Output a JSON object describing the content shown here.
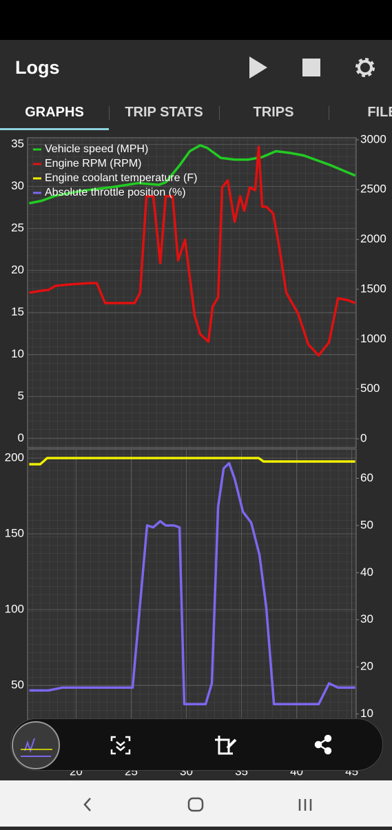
{
  "app": {
    "title": "Logs",
    "tabs": [
      "GRAPHS",
      "TRIP STATS",
      "TRIPS",
      "FILE"
    ]
  },
  "chart_data": [
    {
      "type": "line",
      "xlim": [
        15.6,
        45.4
      ],
      "ylim": [
        -1.1,
        35.8
      ],
      "yticks": [
        0,
        5,
        10,
        15,
        20,
        25,
        30,
        35
      ],
      "y2lim": [
        -90,
        3020
      ],
      "y2ticks": [
        0,
        500,
        1000,
        1500,
        2000,
        2500,
        3000
      ],
      "grid": true,
      "legend": "upper left",
      "series": [
        {
          "name": "Vehicle speed (MPH)",
          "color": "#22cc22",
          "x": [
            15.75,
            16.88,
            18.13,
            20.63,
            23.13,
            25.63,
            27.5,
            28.13,
            29.38,
            30.31,
            31.25,
            31.88,
            33.13,
            34.38,
            35.63,
            36.88,
            38.13,
            39.38,
            40.63,
            43.13,
            45.31
          ],
          "values": [
            28,
            28.3,
            28.9,
            29.5,
            29.9,
            30.4,
            30.2,
            30.5,
            32.5,
            34.2,
            34.9,
            34.6,
            33.4,
            33.2,
            33.2,
            33.5,
            34.2,
            34,
            33.7,
            32.5,
            31.3
          ]
        },
        {
          "name": "Engine RPM (RPM)",
          "color": "#e01010",
          "axis": "y2",
          "x": [
            15.75,
            16.88,
            17.5,
            18.13,
            19.38,
            21.25,
            21.88,
            22.63,
            23.75,
            25.31,
            25.81,
            26.38,
            27,
            27.63,
            28.13,
            28.75,
            29.25,
            29.88,
            30.75,
            31.25,
            32,
            32.38,
            32.88,
            33.25,
            33.75,
            34.38,
            34.88,
            35.25,
            35.75,
            36.25,
            36.56,
            36.88,
            37.25,
            37.88,
            38.44,
            39.06,
            40.13,
            41.06,
            42,
            42.94,
            43.75,
            44.69,
            45.31
          ],
          "values": [
            1465,
            1486,
            1493,
            1534,
            1548,
            1562,
            1562,
            1361,
            1361,
            1361,
            1465,
            2433,
            2433,
            1762,
            2433,
            2433,
            1790,
            1997,
            1237,
            1050,
            974,
            1327,
            1417,
            2522,
            2592,
            2177,
            2433,
            2288,
            2522,
            2495,
            2930,
            2329,
            2329,
            2260,
            1914,
            1465,
            1258,
            947,
            836,
            968,
            1410,
            1389,
            1361
          ]
        }
      ]
    },
    {
      "type": "line",
      "xlim": [
        15.6,
        45.4
      ],
      "xticks": [
        20,
        25,
        30,
        35,
        40,
        45
      ],
      "ylim": [
        0,
        205.9
      ],
      "yticks": [
        50,
        100,
        150,
        200
      ],
      "y2lim": [
        0,
        66.2
      ],
      "y2ticks": [
        10,
        20,
        30,
        40,
        50,
        60
      ],
      "grid": true,
      "series": [
        {
          "name": "Engine coolant temperature (F)",
          "color": "#f0f000",
          "x": [
            15.75,
            16.75,
            17.38,
            36.56,
            37,
            45.31
          ],
          "values": [
            195.9,
            195.9,
            200,
            200,
            197.7,
            197.7
          ]
        },
        {
          "name": "Absolute throttle position (%)",
          "color": "#7b68ee",
          "axis": "y2",
          "x": [
            15.75,
            17.5,
            18.75,
            25.13,
            26.44,
            27,
            27.63,
            28.13,
            28.88,
            29.38,
            29.81,
            31.75,
            32.31,
            32.88,
            33.38,
            33.88,
            34.38,
            35.13,
            35.88,
            36.63,
            37.25,
            37.94,
            42,
            42.94,
            43.75,
            45.31
          ],
          "values": [
            15,
            15,
            15.6,
            15.6,
            50,
            49.6,
            50.9,
            50,
            50,
            49.6,
            12.1,
            12.1,
            16.5,
            54,
            62.1,
            63.2,
            59.9,
            52.9,
            50.6,
            43.8,
            32.6,
            12.1,
            12.1,
            16.5,
            15.6,
            15.6
          ]
        }
      ]
    }
  ]
}
